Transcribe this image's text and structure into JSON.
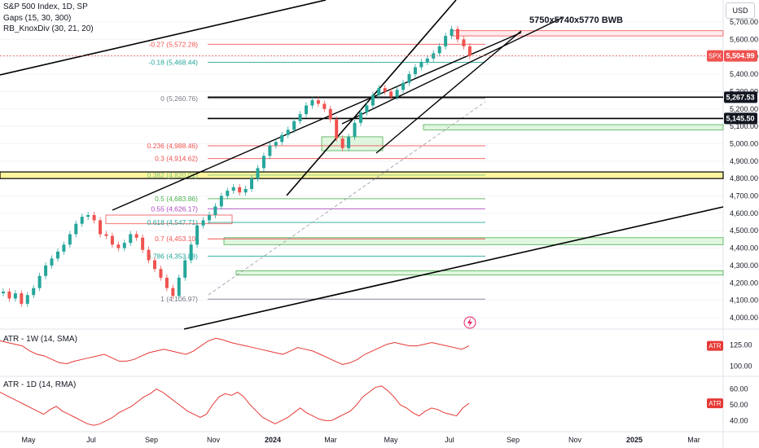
{
  "legend": {
    "title": "S&P 500 Index, 1D, SP",
    "gaps": "Gaps (15, 30, 300)",
    "knox": "RB_KnoxDiv (30, 21, 20)",
    "atr_w": "ATR - 1W (14, SMA)",
    "atr_d": "ATR - 1D (14, RMA)"
  },
  "currency": "USD",
  "annotation": "5750x5740x5770 BWB",
  "colors": {
    "up": "#26a69a",
    "down": "#ef5350",
    "trend": "#000000",
    "atr": "#e53935",
    "gap_fill": "#c8efc5",
    "gap_edge": "#4caf50",
    "hl_fill": "#fff59d"
  },
  "chart_data": [
    {
      "type": "candlestick",
      "x_ticks": [
        "May",
        "Jul",
        "Sep",
        "Nov",
        "2024",
        "Mar",
        "May",
        "Jul",
        "Sep",
        "Nov",
        "2025",
        "Mar"
      ],
      "y_ticks": [
        4000,
        4100,
        4200,
        4300,
        4400,
        4500,
        4600,
        4700,
        4800,
        4900,
        5000,
        5100,
        5200,
        5300,
        5400,
        5500,
        5600,
        5700
      ],
      "y_tick_labels": [
        "4,000.00",
        "4,100.00",
        "4,200.00",
        "4,300.00",
        "4,400.00",
        "4,500.00",
        "4,600.00",
        "4,700.00",
        "4,800.00",
        "4,900.00",
        "5,000.00",
        "5,100.00",
        "5,200.00",
        "5,300.00",
        "5,400.00",
        "5,500.00",
        "5,600.00",
        "5,700.00"
      ],
      "ylim": [
        3910,
        5790
      ],
      "last_price": {
        "label": "SPX",
        "value": 5504.99,
        "text": "5,504.99"
      },
      "price_levels": [
        {
          "value": 5267.53,
          "text": "5,267.53"
        },
        {
          "value": 5145.5,
          "text": "5,145.50"
        }
      ],
      "fib_levels": [
        {
          "text": "-0.27 (5,572.28)",
          "value": 5572.28,
          "color": "#ef5350"
        },
        {
          "text": "-0.18 (5,468.44)",
          "value": 5468.44,
          "color": "#26a69a"
        },
        {
          "text": "0 (5,260.76)",
          "value": 5260.76,
          "color": "#787b86"
        },
        {
          "text": "0.236 (4,988.46)",
          "value": 4988.46,
          "color": "#ef5350"
        },
        {
          "text": "0.3 (4,914.62)",
          "value": 4914.62,
          "color": "#ef5350"
        },
        {
          "text": "0.382 (4,820.01)",
          "value": 4820.01,
          "color": "#81c784"
        },
        {
          "text": "0.5 (4,683.86)",
          "value": 4683.86,
          "color": "#4caf50"
        },
        {
          "text": "0.55 (4,626.17)",
          "value": 4626.17,
          "color": "#ab47bc"
        },
        {
          "text": "0.618 (4,547.71)",
          "value": 4547.71,
          "color": "#26a69a"
        },
        {
          "text": "0.7 (4,453.10)",
          "value": 4453.1,
          "color": "#ef5350"
        },
        {
          "text": "0.786 (4,353.88)",
          "value": 4353.88,
          "color": "#26a69a"
        },
        {
          "text": "1 (4,106.97)",
          "value": 4106.97,
          "color": "#787b86"
        }
      ],
      "gap_zones": [
        [
          5080,
          5110
        ],
        [
          4420,
          4460
        ],
        [
          4245,
          4270
        ],
        [
          4960,
          5040
        ]
      ],
      "highlight_zone": [
        4800,
        4838
      ],
      "close_path": [
        [
          0,
          4150
        ],
        [
          3,
          4110
        ],
        [
          6,
          4140
        ],
        [
          9,
          4080
        ],
        [
          12,
          4130
        ],
        [
          15,
          4170
        ],
        [
          18,
          4240
        ],
        [
          21,
          4300
        ],
        [
          24,
          4340
        ],
        [
          27,
          4380
        ],
        [
          30,
          4420
        ],
        [
          33,
          4480
        ],
        [
          36,
          4540
        ],
        [
          39,
          4580
        ],
        [
          42,
          4590
        ],
        [
          45,
          4560
        ],
        [
          48,
          4480
        ],
        [
          51,
          4470
        ],
        [
          54,
          4420
        ],
        [
          57,
          4400
        ],
        [
          60,
          4430
        ],
        [
          63,
          4480
        ],
        [
          66,
          4460
        ],
        [
          69,
          4390
        ],
        [
          72,
          4330
        ],
        [
          75,
          4280
        ],
        [
          78,
          4230
        ],
        [
          81,
          4170
        ],
        [
          84,
          4125
        ],
        [
          87,
          4230
        ],
        [
          90,
          4330
        ],
        [
          93,
          4420
        ],
        [
          96,
          4530
        ],
        [
          99,
          4560
        ],
        [
          102,
          4590
        ],
        [
          105,
          4640
        ],
        [
          108,
          4700
        ],
        [
          111,
          4730
        ],
        [
          114,
          4750
        ],
        [
          117,
          4720
        ],
        [
          120,
          4740
        ],
        [
          123,
          4800
        ],
        [
          126,
          4860
        ],
        [
          129,
          4930
        ],
        [
          132,
          4990
        ],
        [
          135,
          5010
        ],
        [
          138,
          5050
        ],
        [
          141,
          5080
        ],
        [
          144,
          5130
        ],
        [
          147,
          5170
        ],
        [
          150,
          5220
        ],
        [
          153,
          5250
        ],
        [
          156,
          5230
        ],
        [
          159,
          5200
        ],
        [
          162,
          5140
        ],
        [
          165,
          5030
        ],
        [
          168,
          4975
        ],
        [
          171,
          5040
        ],
        [
          174,
          5120
        ],
        [
          177,
          5180
        ],
        [
          180,
          5220
        ],
        [
          183,
          5280
        ],
        [
          186,
          5320
        ],
        [
          189,
          5300
        ],
        [
          192,
          5270
        ],
        [
          195,
          5310
        ],
        [
          198,
          5350
        ],
        [
          201,
          5400
        ],
        [
          204,
          5440
        ],
        [
          207,
          5470
        ],
        [
          210,
          5490
        ],
        [
          213,
          5520
        ],
        [
          216,
          5560
        ],
        [
          219,
          5620
        ],
        [
          222,
          5660
        ],
        [
          225,
          5600
        ],
        [
          228,
          5560
        ],
        [
          231,
          5505
        ]
      ]
    },
    {
      "type": "line",
      "name": "ATR - 1W (14, SMA)",
      "y_ticks": [
        100,
        125
      ],
      "y_tick_labels": [
        "100.00",
        "125.00"
      ],
      "ylim": [
        90,
        140
      ],
      "badge": "ATR",
      "values": [
        130,
        128,
        126,
        124,
        118,
        114,
        112,
        108,
        104,
        103,
        106,
        108,
        110,
        112,
        114,
        110,
        106,
        106,
        108,
        112,
        116,
        118,
        120,
        118,
        116,
        114,
        118,
        124,
        130,
        133,
        131,
        128,
        126,
        124,
        122,
        120,
        118,
        116,
        114,
        118,
        122,
        120,
        118,
        114,
        110,
        106,
        102,
        104,
        108,
        114,
        118,
        122,
        126,
        128,
        126,
        124,
        124,
        126,
        128,
        126,
        124,
        122,
        120,
        124
      ]
    },
    {
      "type": "line",
      "name": "ATR - 1D (14, RMA)",
      "y_ticks": [
        40,
        50,
        60
      ],
      "y_tick_labels": [
        "40.00",
        "50.00",
        "60.00"
      ],
      "ylim": [
        34,
        66
      ],
      "badge": "ATR",
      "values": [
        58,
        56,
        54,
        52,
        50,
        48,
        46,
        44,
        47,
        49,
        46,
        44,
        42,
        40,
        38,
        37,
        38,
        40,
        42,
        45,
        47,
        49,
        52,
        55,
        57,
        60,
        58,
        55,
        52,
        49,
        46,
        44,
        42,
        44,
        50,
        55,
        57,
        56,
        58,
        55,
        50,
        46,
        42,
        40,
        38,
        40,
        42,
        45,
        48,
        45,
        43,
        41,
        40,
        40,
        42,
        44,
        46,
        50,
        55,
        58,
        61,
        62,
        59,
        55,
        50,
        48,
        45,
        43,
        46,
        48,
        47,
        45,
        44,
        43,
        48,
        51
      ]
    }
  ]
}
